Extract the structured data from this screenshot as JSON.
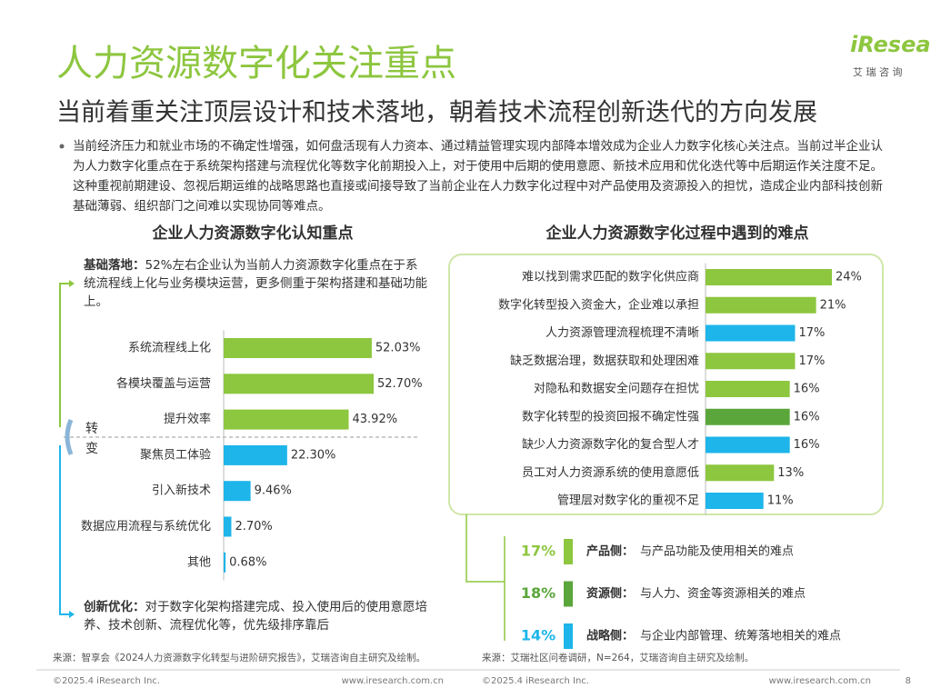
{
  "header": {
    "title": "人力资源数字化关注重点",
    "subtitle": "当前着重关注顶层设计和技术落地，朝着技术流程创新迭代的方向发展",
    "logo": "iResearch",
    "logo_sub": "艾 瑞 咨 询"
  },
  "bullet": "当前经济压力和就业市场的不确定性增强，如何盘活现有人力资本、通过精益管理实现内部降本增效成为企业人力数字化核心关注点。当前过半企业认为人力数字化重点在于系统架构搭建与流程优化等数字化前期投入上，对于使用中后期的使用意愿、新技术应用和优化迭代等中后期运作关注度不足。这种重视前期建设、忽视后期运维的战略思路也直接或间接导致了当前企业在人力数字化过程中对产品使用及资源投入的担忧，造成企业内部科技创新基础薄弱、组织部门之间难以实现协同等难点。",
  "chart_data": [
    {
      "type": "bar",
      "title": "企业人力资源数字化认知重点",
      "categories": [
        "系统流程线上化",
        "各模块覆盖与运营",
        "提升效率",
        "聚焦员工体验",
        "引入新技术",
        "数据应用流程与系统优化",
        "其他"
      ],
      "values": [
        52.03,
        52.7,
        43.92,
        22.3,
        9.46,
        2.7,
        0.68
      ],
      "value_labels": [
        "52.03%",
        "52.70%",
        "43.92%",
        "22.30%",
        "9.46%",
        "2.70%",
        "0.68%"
      ],
      "colors": [
        "#8dc63f",
        "#8dc63f",
        "#8dc63f",
        "#1db5ea",
        "#1db5ea",
        "#1db5ea",
        "#1db5ea"
      ]
    },
    {
      "type": "bar",
      "title": "企业人力资源数字化过程中遇到的难点",
      "categories": [
        "难以找到需求匹配的数字化供应商",
        "数字化转型投入资金大，企业难以承担",
        "人力资源管理流程梳理不清晰",
        "缺乏数据治理，数据获取和处理困难",
        "对隐私和数据安全问题存在担忧",
        "数字化转型的投资回报不确定性强",
        "缺少人力资源数字化的复合型人才",
        "员工对人力资源系统的使用意愿低",
        "管理层对数字化的重视不足"
      ],
      "values": [
        24,
        21,
        17,
        17,
        16,
        16,
        16,
        13,
        11
      ],
      "value_labels": [
        "24%",
        "21%",
        "17%",
        "17%",
        "16%",
        "16%",
        "16%",
        "13%",
        "11%"
      ],
      "colors": [
        "#8dc63f",
        "#8dc63f",
        "#1db5ea",
        "#8dc63f",
        "#8dc63f",
        "#5aa63a",
        "#1db5ea",
        "#8dc63f",
        "#1db5ea"
      ]
    }
  ],
  "annotations": {
    "top_label": "基础落地：",
    "top_text": "52%左右企业认为当前人力资源数字化重点在于系统流程线上化与业务模块运营，更多侧重于架构搭建和基础功能上。",
    "shift": "转变",
    "bottom_label": "创新优化：",
    "bottom_text": "对于数字化架构搭建完成、投入使用后的使用意愿培养、技术创新、流程优化等，优先级排序靠后"
  },
  "groups": [
    {
      "share": "17%",
      "label": "产品侧：",
      "desc": "与产品功能及使用相关的难点",
      "color": "#8dc63f"
    },
    {
      "share": "18%",
      "label": "资源侧：",
      "desc": "与人力、资金等资源相关的难点",
      "color": "#5aa63a"
    },
    {
      "share": "14%",
      "label": "战略侧：",
      "desc": "与企业内部管理、统筹落地相关的难点",
      "color": "#1db5ea"
    }
  ],
  "footer": {
    "source_left": "来源：智享会《2024人力资源数字化转型与进阶研究报告》，艾瑞咨询自主研究及绘制。",
    "source_right": "来源：艾瑞社区问卷调研，N=264，艾瑞咨询自主研究及绘制。",
    "copyright_left": "©2025.4 iResearch Inc.",
    "url_left": "www.iresearch.com.cn",
    "copyright_right": "©2025.4 iResearch Inc.",
    "url_right": "www.iresearch.com.cn",
    "page": "8"
  }
}
